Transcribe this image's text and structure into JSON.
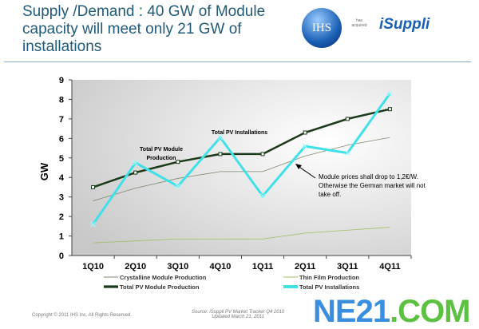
{
  "header": {
    "title": "Supply /Demand : 40 GW of Module capacity will meet only 21 GW of installations",
    "logo_text": "IHS",
    "acquired_text": "has acquired",
    "brand": "iSuppli"
  },
  "footer": {
    "copyright": "Copyright © 2011 IHS Inc. All Rights Reserved.",
    "source": "Source: iSuppli PV Market Tracker Q4 2010",
    "updated": "Updated March 21, 2011",
    "watermark_a": "NE21",
    "watermark_b": ".COM"
  },
  "chart_data": {
    "type": "line",
    "title": "",
    "xlabel": "",
    "ylabel": "GW",
    "ylim": [
      0,
      9
    ],
    "yticks": [
      0,
      1,
      2,
      3,
      4,
      5,
      6,
      7,
      8,
      9
    ],
    "categories": [
      "1Q10",
      "2Q10",
      "3Q10",
      "4Q10",
      "1Q11",
      "2Q11",
      "3Q11",
      "4Q11"
    ],
    "series": [
      {
        "name": "Crystalline Module Production",
        "color": "#7a8a70",
        "values": [
          2.8,
          3.45,
          3.95,
          4.3,
          4.3,
          5.1,
          5.65,
          6.05
        ]
      },
      {
        "name": "Thin Film Production",
        "color": "#9cbf6a",
        "values": [
          0.65,
          0.75,
          0.85,
          0.85,
          0.85,
          1.15,
          1.3,
          1.45
        ]
      },
      {
        "name": "Total PV Module Production",
        "color": "#1a3a1a",
        "values": [
          3.5,
          4.25,
          4.8,
          5.2,
          5.2,
          6.3,
          7.0,
          7.5
        ]
      },
      {
        "name": "Total PV Installations",
        "color": "#40e0e8",
        "values": [
          1.6,
          4.75,
          3.55,
          6.05,
          3.05,
          5.6,
          5.25,
          8.3
        ]
      }
    ],
    "annotations": {
      "module_label_1": "Total PV Module",
      "module_label_2": "Production",
      "install_label": "Total PV Installations",
      "note_1": "Module prices shall drop to 1,2€/W.",
      "note_2": "Otherwise the German market will not",
      "note_3": "take off."
    },
    "legend": "bottom"
  }
}
